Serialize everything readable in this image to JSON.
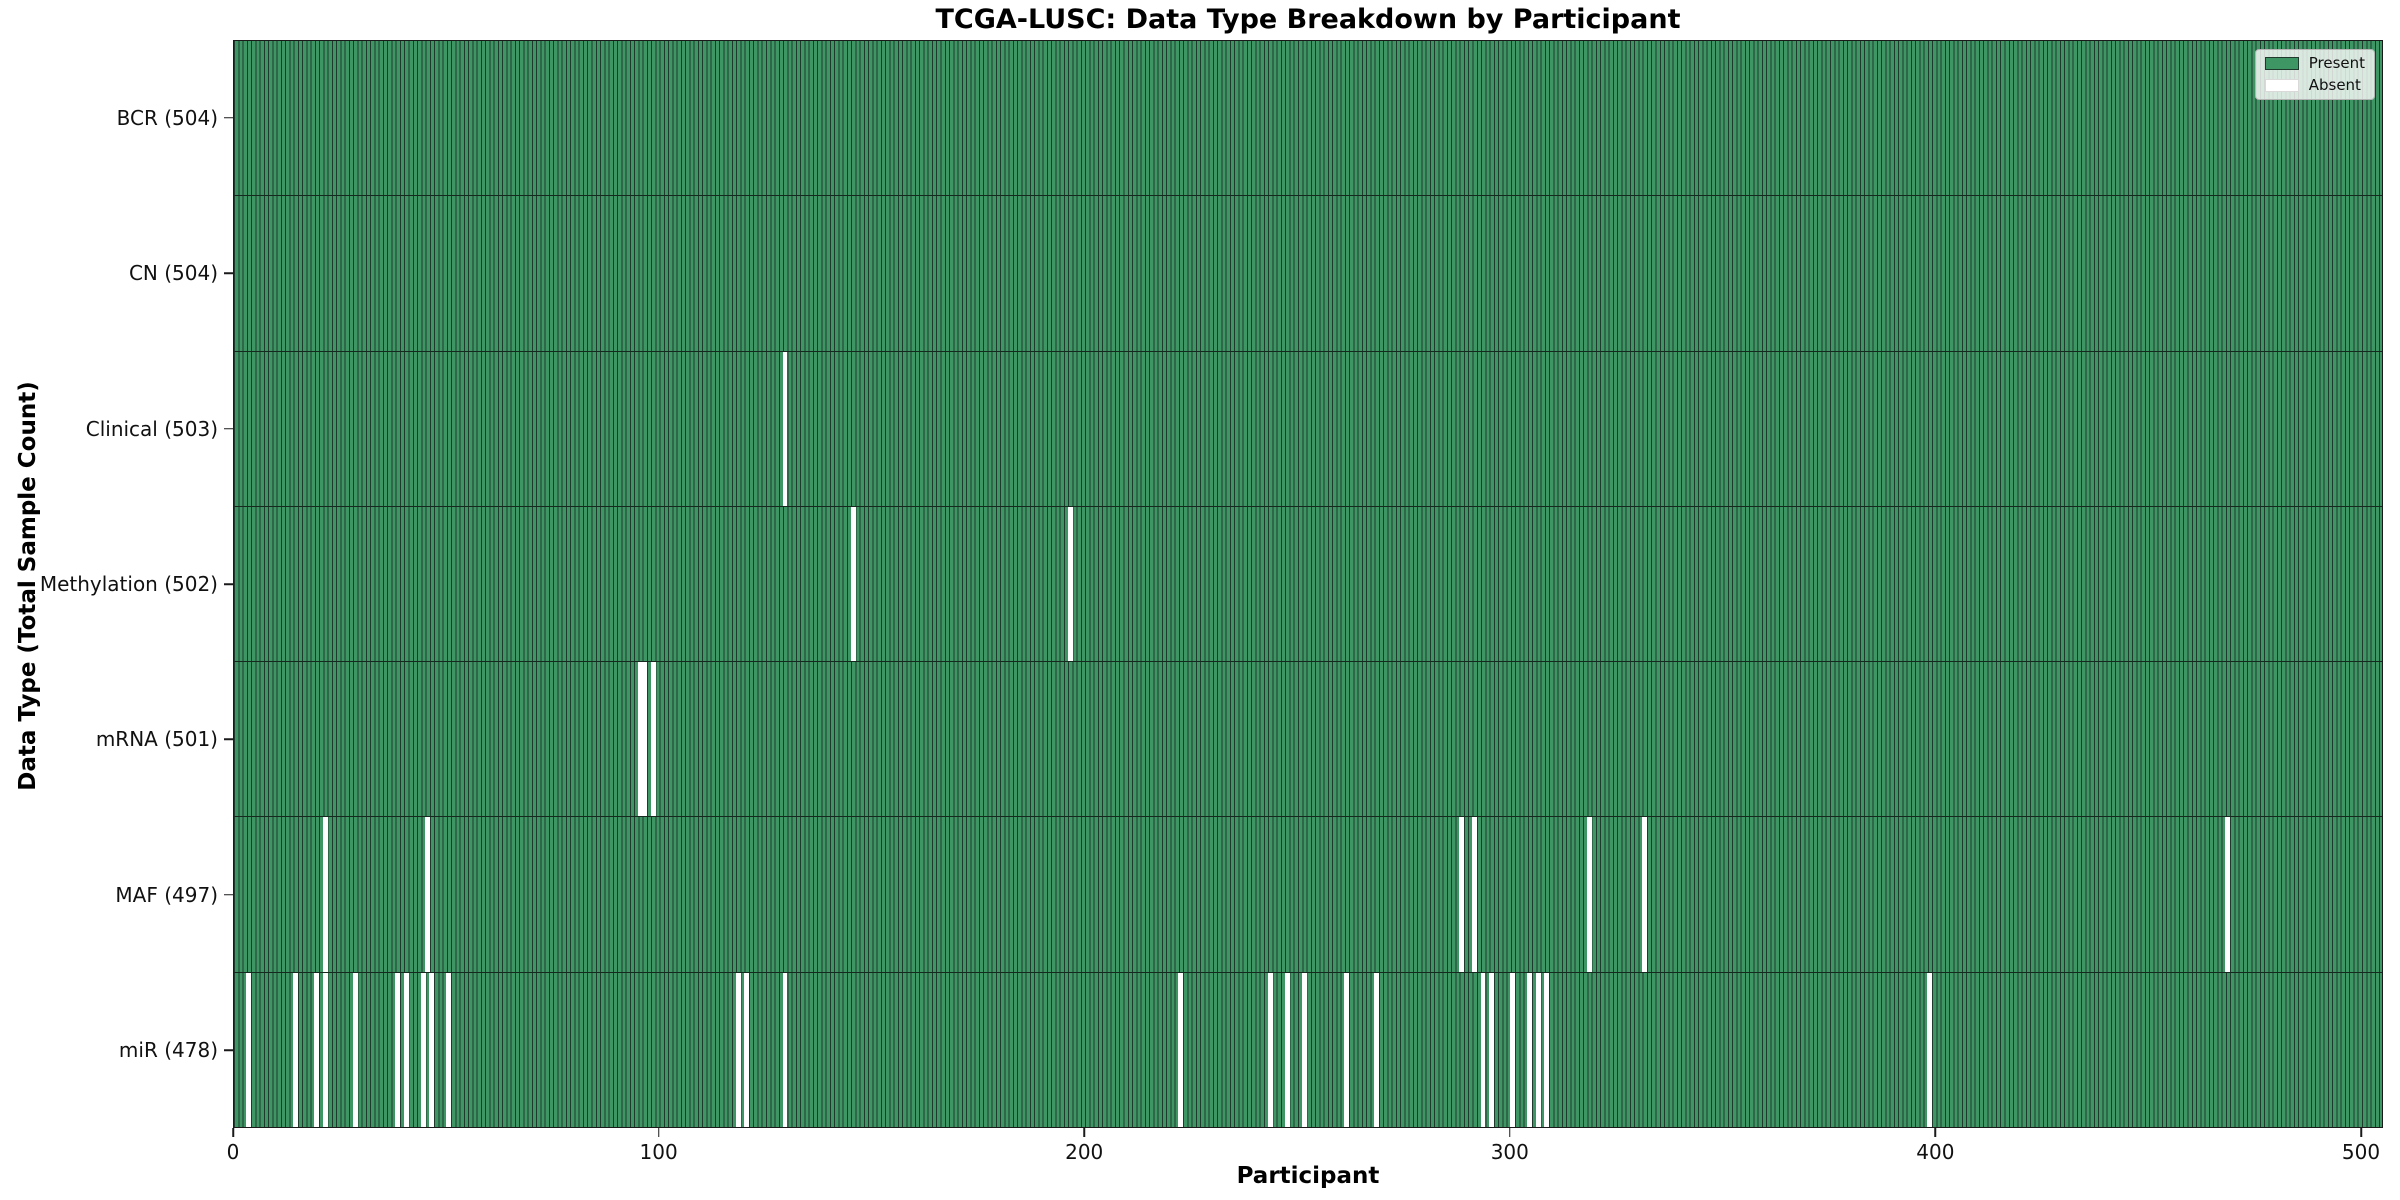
{
  "title": "TCGA-LUSC: Data Type Breakdown by Participant",
  "xlabel": "Participant",
  "ylabel": "Data Type (Total Sample Count)",
  "legend": {
    "present_label": "Present",
    "absent_label": "Absent"
  },
  "colors": {
    "present_fill": "#3E9665",
    "bar_edge": "#1F3A2C",
    "absent_fill": "#FFFFFF",
    "axis": "#1A1A1A"
  },
  "chart_data": {
    "type": "heatmap",
    "title": "TCGA-LUSC: Data Type Breakdown by Participant",
    "xlabel": "Participant",
    "ylabel": "Data Type (Total Sample Count)",
    "legend_position": "upper right",
    "grid": false,
    "x_range": [
      0,
      505
    ],
    "n_participants": 504,
    "x_ticks": [
      0,
      100,
      200,
      300,
      400,
      500
    ],
    "legend": [
      {
        "label": "Present",
        "color": "#3E9665"
      },
      {
        "label": "Absent",
        "color": "#FFFFFF"
      }
    ],
    "rows": [
      {
        "name": "bcr",
        "label": "BCR (504)",
        "total": 504,
        "absent_participants": []
      },
      {
        "name": "cn",
        "label": "CN (504)",
        "total": 504,
        "absent_participants": []
      },
      {
        "name": "clinical",
        "label": "Clinical (503)",
        "total": 503,
        "absent_participants": [
          129
        ]
      },
      {
        "name": "methylation",
        "label": "Methylation (502)",
        "total": 502,
        "absent_participants": [
          145,
          196
        ]
      },
      {
        "name": "mrna",
        "label": "mRNA (501)",
        "total": 501,
        "absent_participants": [
          95,
          96,
          98
        ]
      },
      {
        "name": "maf",
        "label": "MAF (497)",
        "total": 497,
        "absent_participants": [
          21,
          45,
          288,
          291,
          318,
          331,
          468
        ]
      },
      {
        "name": "mir",
        "label": "miR (478)",
        "total": 478,
        "absent_participants": [
          3,
          14,
          19,
          21,
          28,
          38,
          40,
          44,
          46,
          50,
          118,
          120,
          129,
          222,
          243,
          247,
          251,
          261,
          268,
          293,
          295,
          300,
          304,
          306,
          308,
          398
        ]
      }
    ]
  }
}
